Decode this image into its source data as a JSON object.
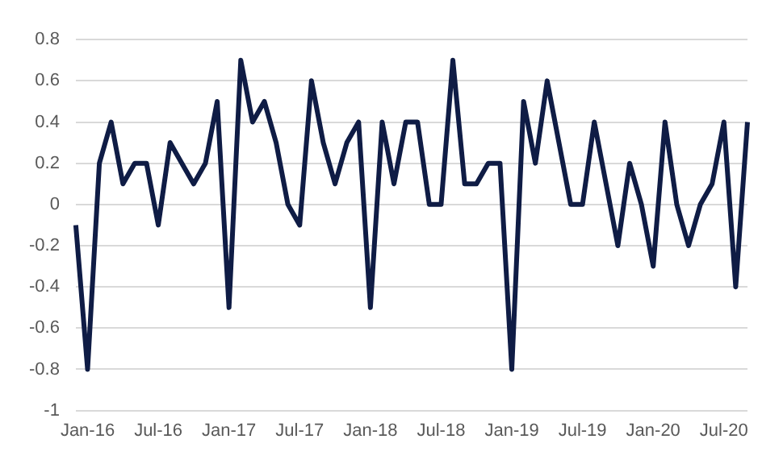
{
  "chart_data": {
    "type": "line",
    "categories": [
      null,
      "Jan-16",
      null,
      null,
      null,
      null,
      null,
      "Jul-16",
      null,
      null,
      null,
      null,
      null,
      "Jan-17",
      null,
      null,
      null,
      null,
      null,
      "Jul-17",
      null,
      null,
      null,
      null,
      null,
      "Jan-18",
      null,
      null,
      null,
      null,
      null,
      "Jul-18",
      null,
      null,
      null,
      null,
      null,
      "Jan-19",
      null,
      null,
      null,
      null,
      null,
      "Jul-19",
      null,
      null,
      null,
      null,
      null,
      "Jan-20",
      null,
      null,
      null,
      null,
      null,
      "Jul-20",
      null,
      null
    ],
    "series": [
      {
        "color": "#0f1c45",
        "values": [
          -0.1,
          -0.8,
          0.2,
          0.4,
          0.1,
          0.2,
          0.2,
          -0.1,
          0.3,
          0.2,
          0.1,
          0.2,
          0.5,
          -0.5,
          0.7,
          0.4,
          0.5,
          0.3,
          0.0,
          -0.1,
          0.6,
          0.3,
          0.1,
          0.3,
          0.4,
          -0.5,
          0.4,
          0.1,
          0.4,
          0.4,
          0.0,
          0.0,
          0.7,
          0.1,
          0.1,
          0.2,
          0.2,
          -0.8,
          0.5,
          0.2,
          0.6,
          0.3,
          0.0,
          0.0,
          0.4,
          0.1,
          -0.2,
          0.2,
          0.0,
          -0.3,
          0.4,
          0.0,
          -0.2,
          0.0,
          0.1,
          0.4,
          -0.4,
          0.4
        ]
      }
    ],
    "ylim": [
      -1,
      0.8
    ],
    "yticks": [
      -1,
      -0.8,
      -0.6,
      -0.4,
      -0.2,
      0,
      0.2,
      0.4,
      0.6,
      0.8
    ],
    "grid": "y",
    "legend": false,
    "marker": "none",
    "line_style": "solid"
  }
}
